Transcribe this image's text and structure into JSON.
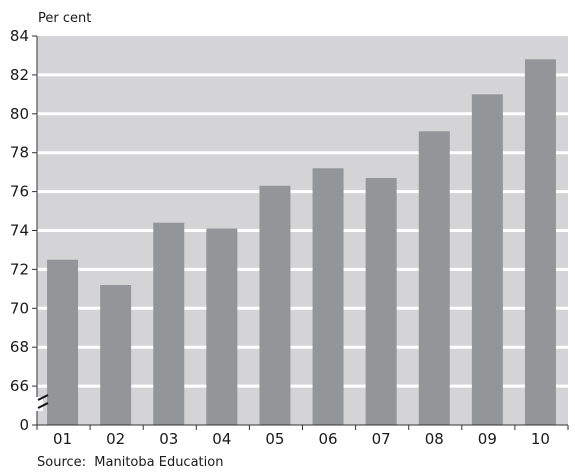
{
  "chart_data": {
    "type": "bar",
    "ylabel": "Per cent",
    "categories": [
      "01",
      "02",
      "03",
      "04",
      "05",
      "06",
      "07",
      "08",
      "09",
      "10"
    ],
    "values": [
      72.5,
      71.2,
      74.4,
      74.1,
      76.3,
      77.2,
      76.7,
      79.1,
      81.0,
      82.8
    ],
    "y_ticks": [
      66,
      68,
      70,
      72,
      74,
      76,
      78,
      80,
      82,
      84
    ],
    "y_zero_label": "0",
    "ylim": [
      64,
      84
    ],
    "axis_break": true,
    "grid": true,
    "colors": {
      "plot_background": "#d4d4d6",
      "bar": "#939598",
      "gridline": "#ffffff"
    }
  },
  "source": "Source:  Manitoba Education"
}
